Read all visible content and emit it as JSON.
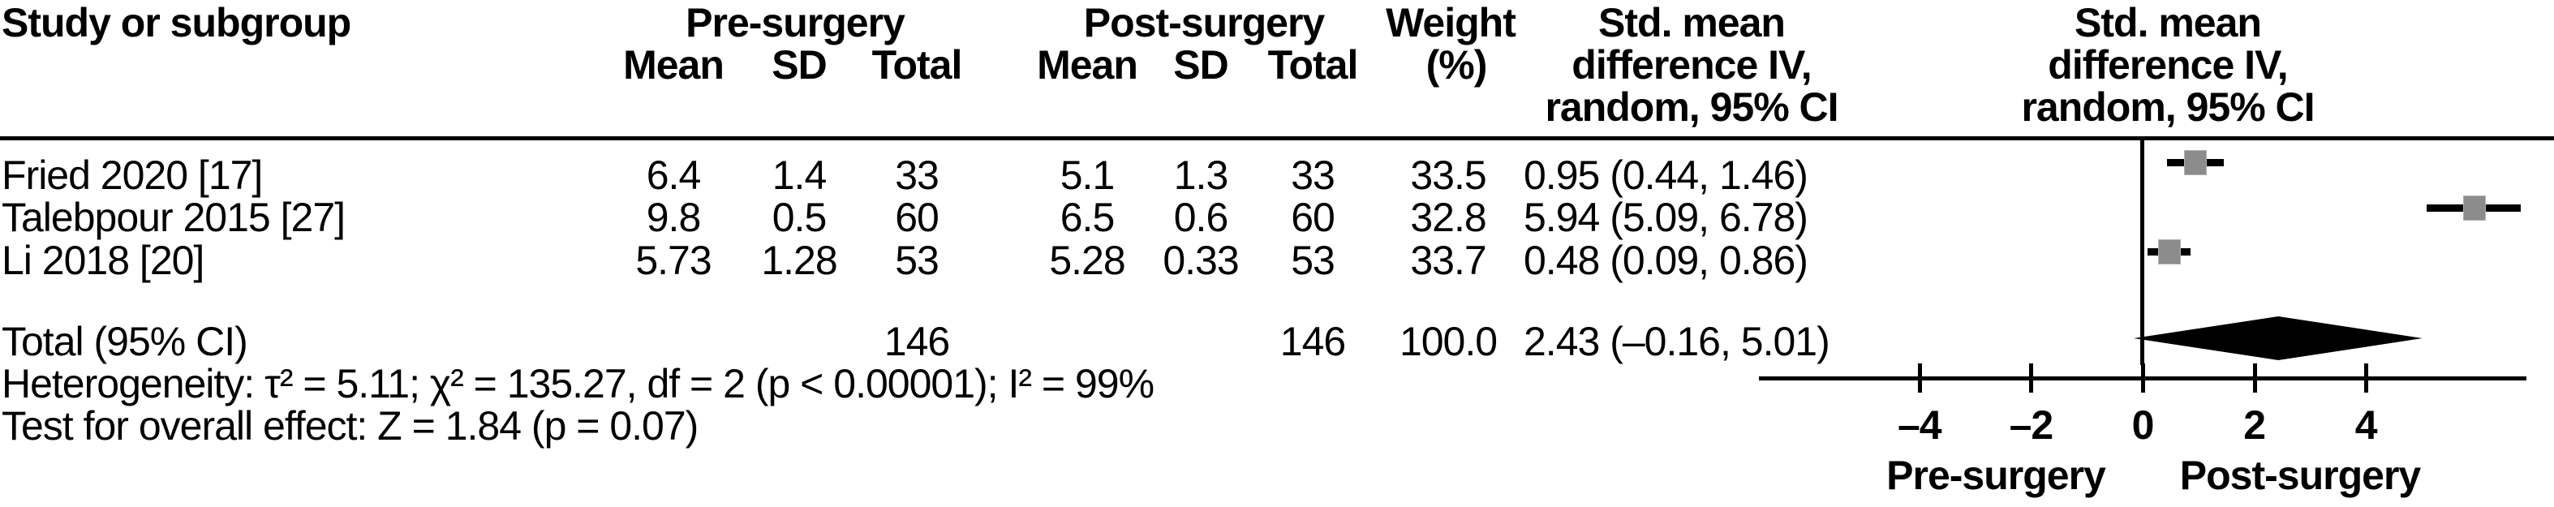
{
  "figure": {
    "columns": {
      "study": "Study or subgroup",
      "pre_group": "Pre-surgery",
      "post_group": "Post-surgery",
      "mean": "Mean",
      "sd": "SD",
      "total": "Total",
      "weight_line1": "Weight",
      "weight_line2": "(%)",
      "smd_line1": "Std. mean",
      "smd_line2": "difference IV,",
      "smd_line3": "random, 95% CI"
    },
    "stats": {
      "heterogeneity": "Heterogeneity: τ² = 5.11; χ² = 135.27, df = 2 (p < 0.00001); I² = 99%",
      "overall_effect": "Test for overall effect: Z = 1.84 (p = 0.07)"
    }
  },
  "chart_data": {
    "type": "forest",
    "effect_measure": "Std. mean difference IV, random, 95% CI",
    "studies": [
      {
        "label": "Fried 2020 [17]",
        "pre_mean": "6.4",
        "pre_sd": "1.4",
        "pre_total": "33",
        "post_mean": "5.1",
        "post_sd": "1.3",
        "post_total": "33",
        "weight": "33.5",
        "ci_text": "0.95 (0.44, 1.46)",
        "est": 0.95,
        "lo": 0.44,
        "hi": 1.46
      },
      {
        "label": "Talebpour 2015 [27]",
        "pre_mean": "9.8",
        "pre_sd": "0.5",
        "pre_total": "60",
        "post_mean": "6.5",
        "post_sd": "0.6",
        "post_total": "60",
        "weight": "32.8",
        "ci_text": "5.94 (5.09, 6.78)",
        "est": 5.94,
        "lo": 5.09,
        "hi": 6.78
      },
      {
        "label": "Li 2018 [20]",
        "pre_mean": "5.73",
        "pre_sd": "1.28",
        "pre_total": "53",
        "post_mean": "5.28",
        "post_sd": "0.33",
        "post_total": "53",
        "weight": "33.7",
        "ci_text": "0.48 (0.09, 0.86)",
        "est": 0.48,
        "lo": 0.09,
        "hi": 0.86
      }
    ],
    "total": {
      "label": "Total (95% CI)",
      "pre_total": "146",
      "post_total": "146",
      "weight": "100.0",
      "ci_text": "2.43 (–0.16, 5.01)",
      "est": 2.43,
      "lo": -0.16,
      "hi": 5.01
    },
    "axis": {
      "ticks": [
        -4,
        -2,
        0,
        2,
        4
      ],
      "tick_labels": [
        "–4",
        "–2",
        "0",
        "2",
        "4"
      ],
      "xmin": -6.9,
      "xmax": 6.9,
      "left_label": "Pre-surgery",
      "right_label": "Post-surgery"
    },
    "marker_color": "#8c8c8c",
    "line_color": "#000000"
  }
}
